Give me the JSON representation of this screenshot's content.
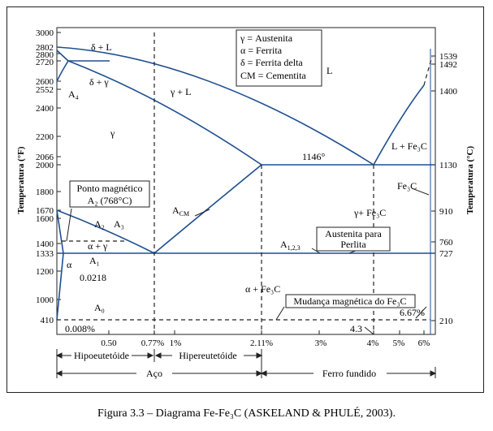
{
  "axes": {
    "y_left_label": "Temperatura (°F)",
    "y_right_label": "Temperatura (°C)",
    "y_left_ticks": [
      "3000",
      "2802",
      "2800",
      "2720",
      "2600",
      "2552",
      "2400",
      "2200",
      "2066",
      "2000",
      "1800",
      "1670",
      "1600",
      "1400",
      "1333",
      "1200",
      "1000",
      "410"
    ],
    "y_right_ticks": [
      "1539",
      "1492",
      "1400",
      "1130",
      "910",
      "760",
      "727",
      "210"
    ],
    "x_ticks": [
      "0.50",
      "0.77%",
      "1%",
      "2.11%",
      "3%",
      "4%",
      "5%",
      "6%"
    ],
    "x_extra": [
      "0.008%",
      "4.3",
      "6.67%",
      "0.0218"
    ]
  },
  "legend": {
    "lines": [
      "γ = Austenita",
      "α = Ferrita",
      "δ = Ferrita delta",
      "CM = Cementita"
    ]
  },
  "phases": {
    "delta_L": "δ + L",
    "A4": "A₄",
    "delta_gamma": "δ + γ",
    "gamma_L": "γ + L",
    "L": "L",
    "gamma": "γ",
    "eutectic_temp": "1146°",
    "L_Fe3C": "L + Fe₃C",
    "Fe3C": "Fe₃C",
    "Acm": "A",
    "Acm_sub": "CM",
    "gamma_Fe3C": "γ+ Fe₃C",
    "A2": "A₂",
    "A3": "A₃",
    "alpha_gamma": "α + γ",
    "A1": "A₁",
    "alpha": "α",
    "A123": "A",
    "A123_sub": "1,2,3",
    "alpha_Fe3C": "α + Fe₃C",
    "A0": "A₀"
  },
  "callouts": {
    "magnetic_point_line1": "Ponto magnético",
    "magnetic_point_line2": "A₂ (768°C)",
    "pearlite_line1": "Austenita para",
    "pearlite_line2": "Perlita",
    "fe3c_magnetic": "Mudança magnética do Fe₃C"
  },
  "regions": {
    "hypoeutectoid": "Hipoeutetóide",
    "hypereutectoid": "Hipereutetóide",
    "steel": "Aço",
    "cast_iron": "Ferro fundido"
  },
  "caption": "Figura 3.3 – Diagrama Fe-Fe₃C (ASKELAND & PHULÉ, 2003).",
  "colors": {
    "lines": "#1f4f8f",
    "frame": "#222222"
  }
}
